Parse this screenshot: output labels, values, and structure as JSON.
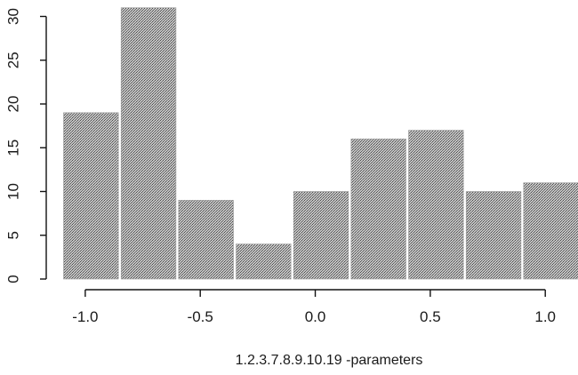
{
  "chart_data": {
    "type": "bar",
    "title": "",
    "xlabel": "1.2.3.7.8.9.10.19 -parameters",
    "ylabel": "",
    "bins": [
      [
        -1.1,
        -0.85
      ],
      [
        -0.85,
        -0.6
      ],
      [
        -0.6,
        -0.35
      ],
      [
        -0.35,
        -0.1
      ],
      [
        -0.1,
        0.15
      ],
      [
        0.15,
        0.4
      ],
      [
        0.4,
        0.65
      ],
      [
        0.65,
        0.9
      ],
      [
        0.9,
        1.15
      ]
    ],
    "values": [
      19,
      31,
      9,
      4,
      10,
      16,
      17,
      10,
      11
    ],
    "xlim": [
      -1.1,
      1.15
    ],
    "ylim": [
      0,
      31
    ],
    "x_ticks": [
      -1.0,
      -0.5,
      0.0,
      0.5,
      1.0
    ],
    "x_tick_labels": [
      "-1.0",
      "-0.5",
      "0.0",
      "0.5",
      "1.0"
    ],
    "y_ticks": [
      0,
      5,
      10,
      15,
      20,
      25,
      30
    ],
    "y_tick_labels": [
      "0",
      "5",
      "10",
      "15",
      "20",
      "25",
      "30"
    ],
    "bar_color": "#b0b0b0",
    "grid": false,
    "legend": "none"
  }
}
